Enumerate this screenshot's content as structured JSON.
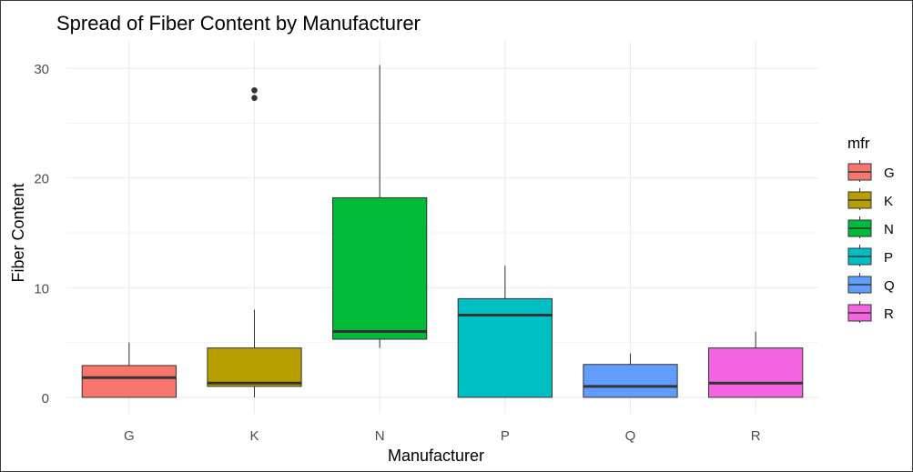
{
  "chart_data": {
    "type": "box",
    "title": "Spread of Fiber Content by Manufacturer",
    "xlabel": "Manufacturer",
    "ylabel": "Fiber Content",
    "ylim": [
      -1.5,
      32.5
    ],
    "yticks": [
      0,
      10,
      20,
      30
    ],
    "grid": true,
    "legend": {
      "title": "mfr",
      "position": "right"
    },
    "categories": [
      "G",
      "K",
      "N",
      "P",
      "Q",
      "R"
    ],
    "colors": [
      "#F8766D",
      "#B79F00",
      "#00BA38",
      "#00BFC4",
      "#619CFF",
      "#F564E3"
    ],
    "boxes": [
      {
        "name": "G",
        "min": 0,
        "q1": 0,
        "median": 1.8,
        "q3": 2.9,
        "max": 5,
        "outliers": []
      },
      {
        "name": "K",
        "min": 0,
        "q1": 1,
        "median": 1.3,
        "q3": 4.5,
        "max": 8,
        "outliers": [
          27.3,
          28
        ]
      },
      {
        "name": "N",
        "min": 4.5,
        "q1": 5.3,
        "median": 6,
        "q3": 18.2,
        "max": 30.3,
        "outliers": []
      },
      {
        "name": "P",
        "min": 0,
        "q1": 0,
        "median": 7.5,
        "q3": 9,
        "max": 12,
        "outliers": []
      },
      {
        "name": "Q",
        "min": 0,
        "q1": 0,
        "median": 1,
        "q3": 3,
        "max": 4,
        "outliers": []
      },
      {
        "name": "R",
        "min": 0,
        "q1": 0,
        "median": 1.3,
        "q3": 4.5,
        "max": 6,
        "outliers": []
      }
    ]
  }
}
